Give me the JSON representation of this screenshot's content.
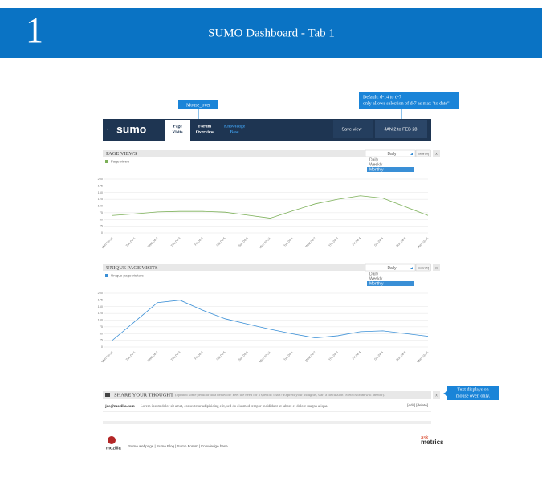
{
  "header": {
    "number": "1",
    "title": "SUMO Dashboard - Tab 1"
  },
  "callouts": {
    "mouse_over": "Mouse_over",
    "default_line1": "Default:         d-14 to d-7",
    "default_line2": "only allows selection of  d-7 as max \"to date\"",
    "text_display_line1": "Text displays on",
    "text_display_line2": "mouse over, only."
  },
  "nav": {
    "logo": "sumo",
    "tabs": [
      [
        "Page",
        "Visits"
      ],
      [
        "Forum",
        "Overview"
      ],
      [
        "Knowledge",
        "Base"
      ]
    ],
    "save_view": "Save view",
    "date_range": "JAN 2  to  FEB 28"
  },
  "charts": [
    {
      "type": "line",
      "title": "PAGE VIEWS",
      "dropdown": {
        "selected": "Daily",
        "options": [
          "Daily",
          "Weekly",
          "Monthly"
        ],
        "button": "[search]",
        "close": "x"
      },
      "categories": [
        "Mon 03-31",
        "Tue 04-1",
        "Wed 04-2",
        "Thu 04-3",
        "Fri 04-4",
        "Sat 04-5",
        "Sun 04-6",
        "Mon 03-31",
        "Tue 04-1",
        "Wed 04-2",
        "Thu 04-3",
        "Fri 04-4",
        "Sat 04-5",
        "Sun 04-6",
        "Mon 03-31"
      ],
      "series": [
        {
          "name": "Page views",
          "color": "#7cb058",
          "values": [
            65,
            71,
            78,
            80,
            80,
            77,
            66,
            55,
            82,
            108,
            125,
            138,
            129,
            97,
            65
          ]
        }
      ],
      "ylim": [
        0,
        200
      ],
      "yticks": [
        0,
        25,
        50,
        75,
        100,
        125,
        150,
        175,
        200
      ],
      "grid": true
    },
    {
      "type": "line",
      "title": "UNIQUE PAGE VISITS",
      "dropdown": {
        "selected": "Daily",
        "options": [
          "Daily",
          "Weekly",
          "Monthly"
        ],
        "button": "[search]",
        "close": "x"
      },
      "categories": [
        "Mon 03-31",
        "Tue 04-1",
        "Wed 04-2",
        "Thu 04-3",
        "Fri 04-4",
        "Sat 04-5",
        "Sun 04-6",
        "Mon 03-31",
        "Tue 04-1",
        "Wed 04-2",
        "Thu 04-3",
        "Fri 04-4",
        "Sat 04-5",
        "Sun 04-6",
        "Mon 03-31"
      ],
      "series": [
        {
          "name": "Unique page visitors",
          "color": "#3a8fd6",
          "values": [
            25,
            95,
            165,
            174,
            137,
            105,
            85,
            66,
            49,
            34,
            42,
            57,
            60,
            50,
            40
          ]
        }
      ],
      "ylim": [
        0,
        200
      ],
      "yticks": [
        0,
        25,
        50,
        75,
        100,
        125,
        150,
        175,
        200
      ],
      "grid": true
    }
  ],
  "share": {
    "title": "SHARE YOUR THOUGHT",
    "prompt": "(Spotted some peculiar data behavior? Feel the need for a specific chart? Express your thoughts, start a discussion! Metrics team will answer).",
    "close": "x",
    "author": "joe@mozilla.com",
    "comment": "Lorem ipsum dolor sit amet, consectetur adipisicing elit, sed do eiusmod tempor incididunt ut labore et dolore magna aliqua.",
    "actions": "[edit]  [delete]"
  },
  "footer": {
    "mozilla": "mozilla",
    "links": "Sumo webpage | Sumo Blog | Sumo Forum | Knowledge base",
    "ask": "ask",
    "metrics": "metrics"
  }
}
